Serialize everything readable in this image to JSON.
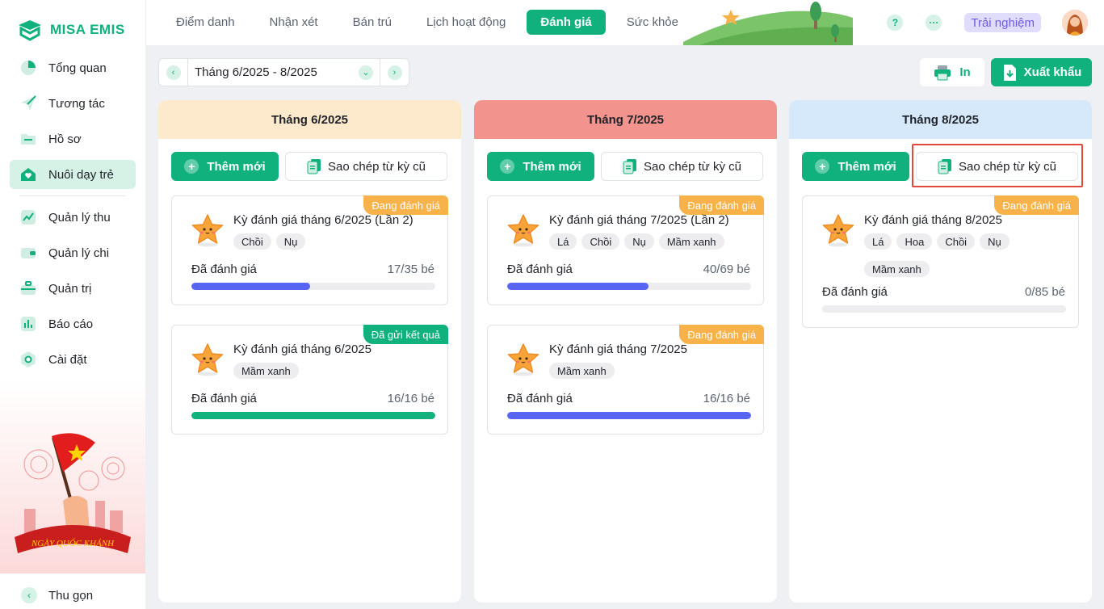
{
  "app": {
    "logo_text": "MISA EMIS",
    "accent": "#10b17d"
  },
  "sidebar": {
    "items": [
      {
        "label": "Tổng quan",
        "icon": "pie-chart-icon"
      },
      {
        "label": "Tương tác",
        "icon": "send-icon"
      },
      {
        "label": "Hồ sơ",
        "icon": "folder-icon"
      },
      {
        "label": "Nuôi dạy trẻ",
        "icon": "heart-house-icon",
        "active": true
      },
      {
        "label": "Quản lý thu",
        "icon": "trend-icon"
      },
      {
        "label": "Quản lý chi",
        "icon": "wallet-icon"
      },
      {
        "label": "Quản trị",
        "icon": "briefcase-icon"
      },
      {
        "label": "Báo cáo",
        "icon": "bar-chart-icon"
      },
      {
        "label": "Cài đặt",
        "icon": "gear-icon"
      }
    ],
    "promo_text": "NGÀY QUỐC KHÁNH",
    "collapse_label": "Thu gọn"
  },
  "topbar": {
    "tabs": [
      "Điểm danh",
      "Nhận xét",
      "Bán trú",
      "Lịch hoạt động",
      "Đánh giá",
      "Sức khỏe"
    ],
    "active_tab": "Đánh giá",
    "help": "?",
    "more": "···",
    "trial_label": "Trải nghiệm"
  },
  "toolbar": {
    "period": "Tháng 6/2025 - 8/2025",
    "print_label": "In",
    "export_label": "Xuất khẩu"
  },
  "columns": [
    {
      "title": "Tháng 6/2025",
      "header_color": "#fde9cc",
      "add_label": "Thêm mới",
      "copy_label": "Sao chép từ kỳ cũ",
      "cards": [
        {
          "status": "Đang đánh giá",
          "status_type": "orange",
          "title": "Kỳ đánh giá tháng 6/2025 (Lần 2)",
          "tags": [
            "Chồi",
            "Nụ"
          ],
          "progress_label": "Đã đánh giá",
          "progress_text": "17/35 bé",
          "done": 17,
          "total": 35,
          "bar_color": "#5865f2"
        },
        {
          "status": "Đã gửi kết quả",
          "status_type": "green",
          "title": "Kỳ đánh giá tháng 6/2025",
          "tags": [
            "Mầm xanh"
          ],
          "progress_label": "Đã đánh giá",
          "progress_text": "16/16 bé",
          "done": 16,
          "total": 16,
          "bar_color": "#10b17d"
        }
      ]
    },
    {
      "title": "Tháng 7/2025",
      "header_color": "#f2938d",
      "add_label": "Thêm mới",
      "copy_label": "Sao chép từ kỳ cũ",
      "cards": [
        {
          "status": "Đang đánh giá",
          "status_type": "orange",
          "title": "Kỳ đánh giá tháng 7/2025 (Lần 2)",
          "tags": [
            "Lá",
            "Chồi",
            "Nụ",
            "Mầm xanh"
          ],
          "progress_label": "Đã đánh giá",
          "progress_text": "40/69 bé",
          "done": 40,
          "total": 69,
          "bar_color": "#5865f2"
        },
        {
          "status": "Đang đánh giá",
          "status_type": "orange",
          "title": "Kỳ đánh giá tháng 7/2025",
          "tags": [
            "Mầm xanh"
          ],
          "progress_label": "Đã đánh giá",
          "progress_text": "16/16 bé",
          "done": 16,
          "total": 16,
          "bar_color": "#5865f2"
        }
      ]
    },
    {
      "title": "Tháng 8/2025",
      "header_color": "#d6e9fb",
      "add_label": "Thêm mới",
      "copy_label": "Sao chép từ kỳ cũ",
      "highlight_copy": true,
      "cards": [
        {
          "status": "Đang đánh giá",
          "status_type": "orange",
          "title": "Kỳ đánh giá tháng 8/2025",
          "tags": [
            "Lá",
            "Hoa",
            "Chồi",
            "Nụ",
            "Mầm xanh"
          ],
          "progress_label": "Đã đánh giá",
          "progress_text": "0/85 bé",
          "done": 0,
          "total": 85,
          "bar_color": "#5865f2"
        }
      ]
    }
  ]
}
